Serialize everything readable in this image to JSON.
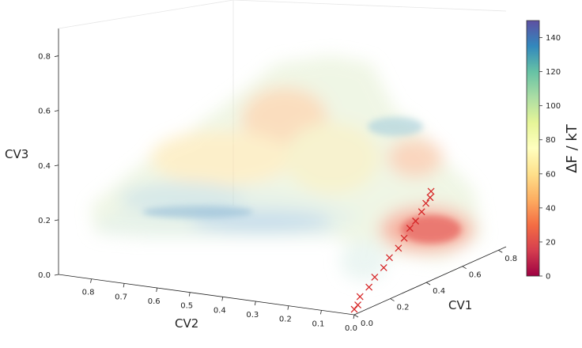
{
  "chart_data": {
    "type": "scatter",
    "projection": "3d",
    "xlabel": "CV1",
    "ylabel": "CV2",
    "zlabel": "CV3",
    "xlim": [
      0.0,
      0.9
    ],
    "ylim": [
      0.0,
      0.9
    ],
    "zlim": [
      0.0,
      0.9
    ],
    "xticks": [
      "0.0",
      "0.2",
      "0.4",
      "0.6",
      "0.8"
    ],
    "yticks": [
      "0.8",
      "0.7",
      "0.6",
      "0.5",
      "0.4",
      "0.3",
      "0.2",
      "0.1",
      "0.0"
    ],
    "zticks": [
      "0.0",
      "0.2",
      "0.4",
      "0.6",
      "0.8"
    ],
    "colorbar": {
      "label": "ΔF / kT",
      "range": [
        0,
        150
      ],
      "ticks": [
        "0",
        "20",
        "40",
        "60",
        "80",
        "100",
        "120",
        "140"
      ],
      "colormap": "Spectral",
      "stops": [
        "#9e0142",
        "#d53e4f",
        "#f46d43",
        "#fdae61",
        "#fee08b",
        "#ffffbf",
        "#e6f598",
        "#abdda4",
        "#66c2a5",
        "#3288bd",
        "#5e4fa2"
      ]
    },
    "path": {
      "marker": "x",
      "color": "#d62728",
      "points": [
        [
          0.0,
          0.0,
          0.02
        ],
        [
          0.02,
          0.0,
          0.03
        ],
        [
          0.05,
          0.01,
          0.05
        ],
        [
          0.1,
          0.01,
          0.07
        ],
        [
          0.15,
          0.02,
          0.09
        ],
        [
          0.2,
          0.02,
          0.11
        ],
        [
          0.25,
          0.03,
          0.13
        ],
        [
          0.3,
          0.03,
          0.15
        ],
        [
          0.35,
          0.04,
          0.17
        ],
        [
          0.4,
          0.05,
          0.19
        ],
        [
          0.45,
          0.06,
          0.2
        ],
        [
          0.52,
          0.08,
          0.21
        ],
        [
          0.58,
          0.1,
          0.22
        ],
        [
          0.64,
          0.12,
          0.22
        ],
        [
          0.7,
          0.15,
          0.22
        ]
      ]
    }
  }
}
